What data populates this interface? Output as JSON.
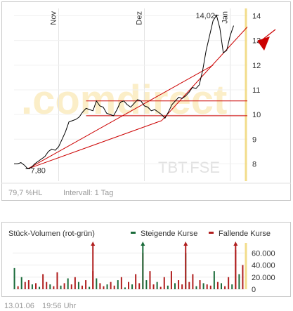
{
  "chart_data": [
    {
      "type": "line",
      "title": "",
      "months": [
        "Nov",
        "Dez",
        "Jan"
      ],
      "y_ticks": [
        8,
        9,
        10,
        11,
        12,
        13,
        14
      ],
      "ylim": [
        7.3,
        14.3
      ],
      "watermark": ".comdirect",
      "instrument": "TBT.FSE",
      "info": "79,7 %HL",
      "interval": "Intervall: 1 Tag",
      "min_label": "7,80",
      "max_label": "14,02",
      "min_value": 7.8,
      "max_value": 14.02,
      "series": [
        {
          "values": [
            8.0,
            8.0,
            8.05,
            7.95,
            7.8,
            7.85,
            8.0,
            8.1,
            8.2,
            8.3,
            8.5,
            8.6,
            8.55,
            8.7,
            9.0,
            9.3,
            9.7,
            9.75,
            9.8,
            9.9,
            10.1,
            10.25,
            10.2,
            10.15,
            10.55,
            10.35,
            10.3,
            10.05,
            10.0,
            9.95,
            10.2,
            10.5,
            10.55,
            10.4,
            10.3,
            10.45,
            10.6,
            10.55,
            10.35,
            10.3,
            10.15,
            10.2,
            10.1,
            10.0,
            9.85,
            10.1,
            10.4,
            10.55,
            10.7,
            10.65,
            10.75,
            10.9,
            11.1,
            11.05,
            11.2,
            11.8,
            12.6,
            13.2,
            13.8,
            14.02,
            13.5,
            12.5,
            12.6,
            13.2,
            13.6
          ]
        }
      ],
      "trendlines": [
        {
          "from": [
            4,
            7.8
          ],
          "to": [
            43,
            9.75
          ]
        },
        {
          "from": [
            4,
            7.8
          ],
          "to": [
            58,
            12.0
          ]
        },
        {
          "from": [
            43,
            9.75
          ],
          "to": [
            68,
            13.55
          ]
        }
      ],
      "horizontal_lines": [
        10.55,
        9.95
      ],
      "arrow_color": "#cc0000",
      "line_color": "#000000",
      "trend_color": "#cc0000"
    },
    {
      "type": "bar",
      "title": "Stück-Volumen (rot-grün)",
      "legend": [
        {
          "label": "Steigende Kurse",
          "color": "#1a6b3a"
        },
        {
          "label": "Fallende Kurse",
          "color": "#b01e1e"
        }
      ],
      "y_ticks": [
        "60.000",
        "40.000",
        "20.000",
        "0"
      ],
      "y_tick_values": [
        60000,
        40000,
        20000,
        0
      ],
      "ylim": [
        0,
        72000
      ],
      "values": [
        35000,
        5000,
        20000,
        12000,
        15000,
        8000,
        10000,
        4000,
        25000,
        12000,
        8000,
        5000,
        28000,
        6000,
        10000,
        18000,
        8000,
        20000,
        12000,
        6000,
        15000,
        4000,
        30000,
        18000,
        10000,
        5000,
        8000,
        12000,
        6000,
        15000,
        20000,
        3000,
        12000,
        8000,
        25000,
        10000,
        60000,
        15000,
        30000,
        8000,
        12000,
        4000,
        20000,
        6000,
        30000,
        10000,
        15000,
        8000,
        60000,
        12000,
        25000,
        5000,
        15000,
        10000,
        8000,
        6000,
        30000,
        12000,
        10000,
        5000,
        20000,
        8000,
        65000,
        25000,
        40000
      ],
      "colors": [
        "g",
        "r",
        "g",
        "r",
        "r",
        "g",
        "r",
        "g",
        "r",
        "r",
        "g",
        "r",
        "r",
        "g",
        "r",
        "g",
        "r",
        "r",
        "g",
        "r",
        "r",
        "g",
        "r",
        "g",
        "r",
        "r",
        "g",
        "r",
        "r",
        "g",
        "r",
        "g",
        "r",
        "g",
        "r",
        "r",
        "r",
        "g",
        "r",
        "r",
        "g",
        "r",
        "r",
        "g",
        "r",
        "g",
        "r",
        "r",
        "g",
        "r",
        "r",
        "g",
        "r",
        "g",
        "r",
        "r",
        "g",
        "r",
        "g",
        "r",
        "r",
        "g",
        "r",
        "g",
        "r"
      ],
      "clipped_markers": [
        22,
        36,
        48,
        62
      ],
      "clipped_colors": [
        "r",
        "g",
        "r",
        "r"
      ]
    }
  ],
  "footer": {
    "date": "13.01.06",
    "time": "19:56 Uhr"
  }
}
